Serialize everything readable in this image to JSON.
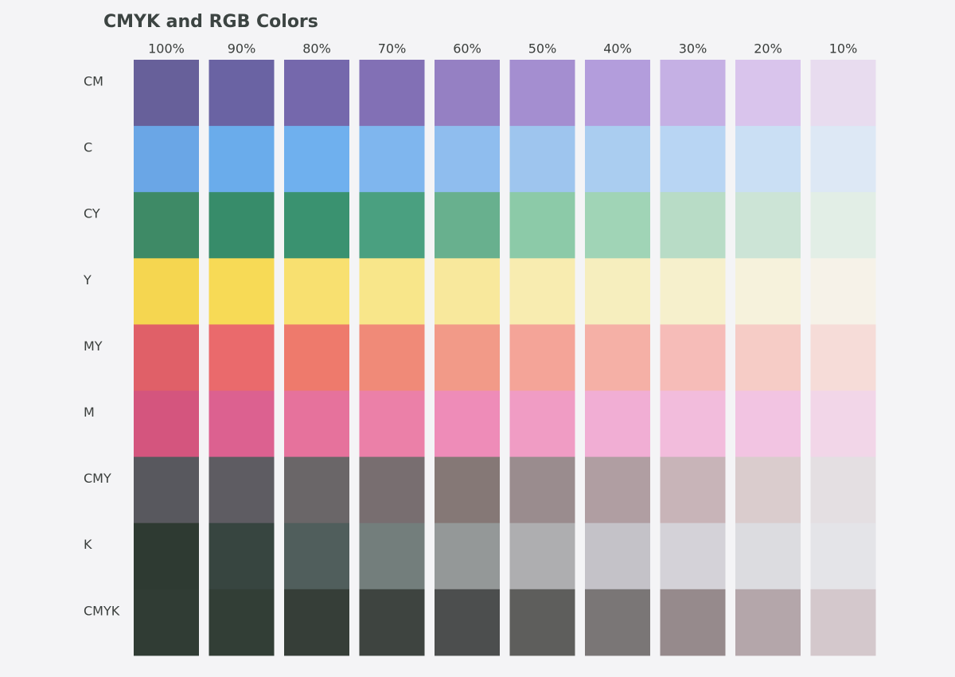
{
  "title": "CMYK and RGB Colors",
  "columns": [
    "100%",
    "90%",
    "80%",
    "70%",
    "60%",
    "50%",
    "40%",
    "30%",
    "20%",
    "10%"
  ],
  "rows": [
    {
      "label": "CM",
      "colors": [
        "#67609a",
        "#6a63a3",
        "#7568ac",
        "#8270b5",
        "#9580c3",
        "#a48ed0",
        "#b39ddc",
        "#c5b0e4",
        "#d9c4ec",
        "#e8dcef"
      ]
    },
    {
      "label": "C",
      "colors": [
        "#6aa6e6",
        "#6aaceb",
        "#6fb0ee",
        "#7fb6ee",
        "#8fbdee",
        "#9ec5ee",
        "#aacdf0",
        "#b8d5f3",
        "#cadff4",
        "#dde8f5"
      ]
    },
    {
      "label": "CY",
      "colors": [
        "#3e8a66",
        "#378c6a",
        "#3a9270",
        "#4aa080",
        "#68b08e",
        "#8ccaa8",
        "#a0d4b6",
        "#b8dcc6",
        "#cce4d6",
        "#e2eee6"
      ]
    },
    {
      "label": "Y",
      "colors": [
        "#f5d650",
        "#f7da56",
        "#f8e070",
        "#f8e68a",
        "#f8e89c",
        "#f8ecb0",
        "#f6eebe",
        "#f6f0cc",
        "#f6f2dc",
        "#f6f2e8"
      ]
    },
    {
      "label": "MY",
      "colors": [
        "#e06068",
        "#ea6a6c",
        "#ee7a6c",
        "#f08a78",
        "#f29a88",
        "#f4a498",
        "#f5b0a6",
        "#f6bcb8",
        "#f6ccc6",
        "#f6dcd8"
      ]
    },
    {
      "label": "M",
      "colors": [
        "#d4557e",
        "#dc6190",
        "#e6729c",
        "#eb80a8",
        "#ee8cb8",
        "#f09cc4",
        "#f1aed4",
        "#f2bcdc",
        "#f2c4e2",
        "#f2d6e8"
      ]
    },
    {
      "label": "CMY",
      "colors": [
        "#58585e",
        "#5e5c62",
        "#6a6668",
        "#786e70",
        "#857876",
        "#9a8c8e",
        "#b09ea2",
        "#c8b4b8",
        "#dacccd",
        "#e4dfe2"
      ]
    },
    {
      "label": "K",
      "colors": [
        "#2e3a32",
        "#374540",
        "#505e5c",
        "#737e7c",
        "#949898",
        "#aeaeb0",
        "#c4c2c8",
        "#d4d2d8",
        "#dcdce0",
        "#e4e4e8"
      ]
    },
    {
      "label": "CMYK",
      "colors": [
        "#303c34",
        "#323e36",
        "#363e38",
        "#3e4440",
        "#4c4e4e",
        "#5e5e5c",
        "#7a7676",
        "#968a8c",
        "#b4a6aa",
        "#d4c8cc"
      ]
    }
  ]
}
